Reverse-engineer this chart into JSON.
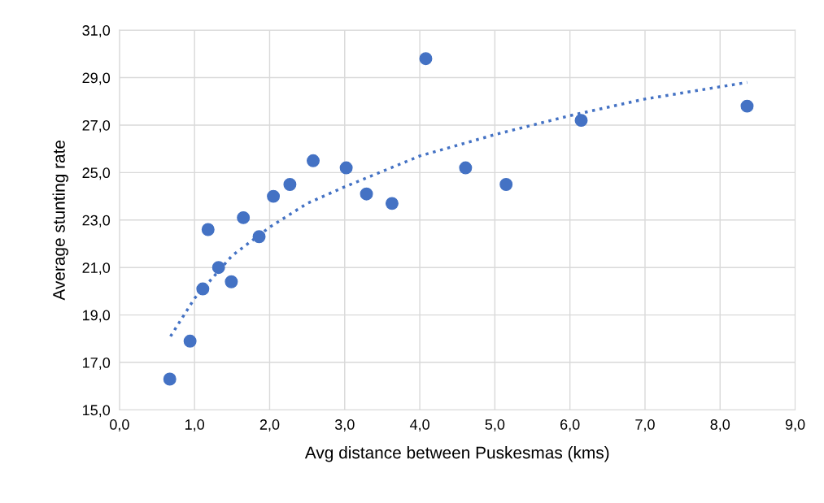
{
  "chart_data": {
    "type": "scatter",
    "xlabel": "Avg distance between Puskesmas (kms)",
    "ylabel": "Average stunting rate",
    "xlim": [
      0,
      9
    ],
    "ylim": [
      15,
      31
    ],
    "xticks": [
      {
        "value": 0,
        "label": "0,0"
      },
      {
        "value": 1,
        "label": "1,0"
      },
      {
        "value": 2,
        "label": "2,0"
      },
      {
        "value": 3,
        "label": "3,0"
      },
      {
        "value": 4,
        "label": "4,0"
      },
      {
        "value": 5,
        "label": "5,0"
      },
      {
        "value": 6,
        "label": "6,0"
      },
      {
        "value": 7,
        "label": "7,0"
      },
      {
        "value": 8,
        "label": "8,0"
      },
      {
        "value": 9,
        "label": "9,0"
      }
    ],
    "yticks": [
      {
        "value": 15,
        "label": "15,0"
      },
      {
        "value": 17,
        "label": "17,0"
      },
      {
        "value": 19,
        "label": "19,0"
      },
      {
        "value": 21,
        "label": "21,0"
      },
      {
        "value": 23,
        "label": "23,0"
      },
      {
        "value": 25,
        "label": "25,0"
      },
      {
        "value": 27,
        "label": "27,0"
      },
      {
        "value": 29,
        "label": "29,0"
      },
      {
        "value": 31,
        "label": "31,0"
      }
    ],
    "grid": true,
    "legend": false,
    "series": [
      {
        "color": "#4472c4",
        "marker": "circle",
        "x": [
          0.67,
          0.94,
          1.11,
          1.18,
          1.32,
          1.49,
          1.65,
          1.86,
          2.05,
          2.27,
          2.58,
          3.02,
          3.29,
          3.63,
          4.08,
          4.61,
          5.15,
          6.15,
          8.36
        ],
        "values": [
          16.3,
          17.9,
          20.1,
          22.6,
          21.0,
          20.4,
          23.1,
          22.3,
          24.0,
          24.5,
          25.5,
          25.2,
          24.1,
          23.7,
          29.8,
          25.2,
          24.5,
          27.2,
          27.8
        ]
      },
      {
        "type": "line",
        "color": "#4472c4",
        "marker": "none",
        "line_style": "dotted",
        "x": [
          0.68,
          1,
          1.5,
          2,
          2.5,
          3,
          4,
          5,
          6,
          7,
          8.36
        ],
        "values": [
          18.1,
          19.7,
          21.5,
          22.7,
          23.7,
          24.4,
          25.7,
          26.6,
          27.4,
          28.1,
          28.8
        ]
      }
    ]
  }
}
